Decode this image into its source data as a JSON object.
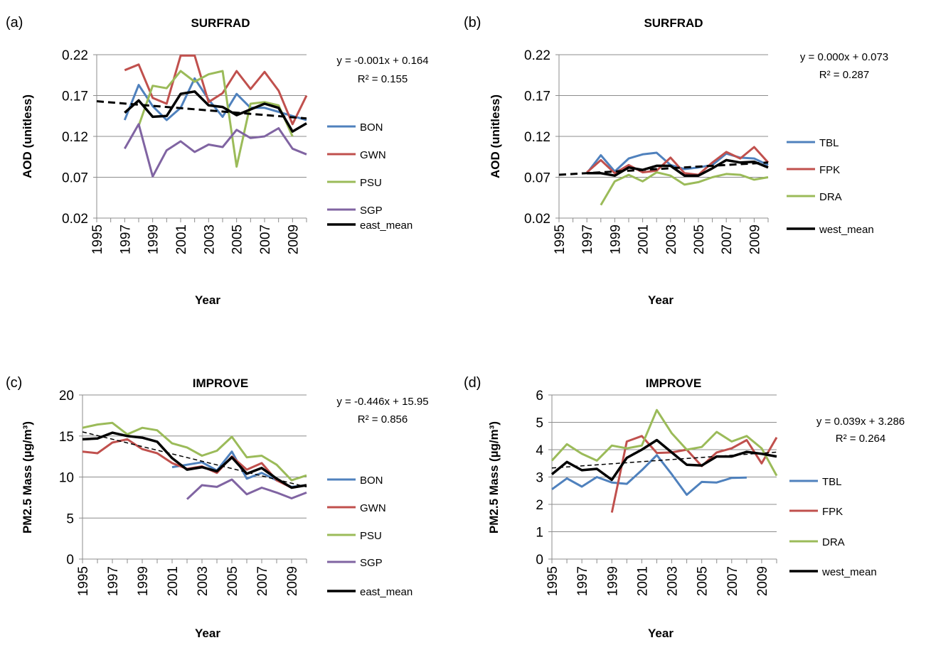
{
  "chart_data": [
    {
      "type": "line",
      "panel_label": "(a)",
      "title": "SURFRAD",
      "xlabel": "Year",
      "ylabel": "AOD (unitless)",
      "ylim": [
        0.02,
        0.22
      ],
      "yticks": [
        0.02,
        0.07,
        0.12,
        0.17,
        0.22
      ],
      "ytick_labels": [
        "0.02",
        "0.07",
        "0.12",
        "0.17",
        "0.22"
      ],
      "xlim": [
        1995,
        2010
      ],
      "xticks": [
        1995,
        1997,
        1999,
        2001,
        2003,
        2005,
        2007,
        2009
      ],
      "xtick_labels": [
        "1995",
        "1997",
        "1999",
        "2001",
        "2003",
        "2005",
        "2007",
        "2009"
      ],
      "grid": true,
      "legend_position": "right",
      "equation": "y = -0.001x + 0.164",
      "r_squared": "R² = 0.155",
      "trend": {
        "x": [
          1995,
          2010
        ],
        "y": [
          0.163,
          0.142
        ]
      },
      "series": [
        {
          "name": "BON",
          "color": "#4F81BD",
          "x": [
            1997,
            1998,
            1999,
            2000,
            2001,
            2002,
            2003,
            2004,
            2005,
            2006,
            2007,
            2008,
            2009,
            2010
          ],
          "y": [
            0.14,
            0.183,
            0.157,
            0.14,
            0.155,
            0.191,
            0.165,
            0.144,
            0.172,
            0.155,
            0.155,
            0.15,
            0.145,
            0.14
          ]
        },
        {
          "name": "GWN",
          "color": "#C0504D",
          "x": [
            1997,
            1998,
            1999,
            2000,
            2001,
            2002,
            2003,
            2004,
            2005,
            2006,
            2007,
            2008,
            2009,
            2010
          ],
          "y": [
            0.201,
            0.208,
            0.167,
            0.16,
            0.219,
            0.219,
            0.162,
            0.173,
            0.2,
            0.178,
            0.199,
            0.176,
            0.135,
            0.17
          ]
        },
        {
          "name": "PSU",
          "color": "#9BBB59",
          "x": [
            1998,
            1999,
            2000,
            2001,
            2002,
            2003,
            2004,
            2005,
            2006,
            2007,
            2008,
            2009
          ],
          "y": [
            0.133,
            0.182,
            0.179,
            0.2,
            0.187,
            0.196,
            0.2,
            0.083,
            0.16,
            0.162,
            0.158,
            0.12
          ]
        },
        {
          "name": "SGP",
          "color": "#8064A2",
          "x": [
            1997,
            1998,
            1999,
            2000,
            2001,
            2002,
            2003,
            2004,
            2005,
            2006,
            2007,
            2008,
            2009,
            2010
          ],
          "y": [
            0.105,
            0.135,
            0.071,
            0.103,
            0.114,
            0.101,
            0.11,
            0.107,
            0.128,
            0.118,
            0.12,
            0.13,
            0.105,
            0.098
          ]
        },
        {
          "name": "east_mean",
          "color": "#000000",
          "x": [
            1997,
            1998,
            1999,
            2000,
            2001,
            2002,
            2003,
            2004,
            2005,
            2006,
            2007,
            2008,
            2009,
            2010
          ],
          "y": [
            0.149,
            0.164,
            0.144,
            0.145,
            0.172,
            0.175,
            0.158,
            0.156,
            0.146,
            0.153,
            0.16,
            0.155,
            0.126,
            0.136
          ]
        }
      ]
    },
    {
      "type": "line",
      "panel_label": "(b)",
      "title": "SURFRAD",
      "xlabel": "Year",
      "ylabel": "AOD (unitless)",
      "ylim": [
        0.02,
        0.22
      ],
      "yticks": [
        0.02,
        0.07,
        0.12,
        0.17,
        0.22
      ],
      "ytick_labels": [
        "0.02",
        "0.07",
        "0.12",
        "0.17",
        "0.22"
      ],
      "xlim": [
        1995,
        2010
      ],
      "xticks": [
        1995,
        1997,
        1999,
        2001,
        2003,
        2005,
        2007,
        2009
      ],
      "xtick_labels": [
        "1995",
        "1997",
        "1999",
        "2001",
        "2003",
        "2005",
        "2007",
        "2009"
      ],
      "grid": true,
      "legend_position": "right",
      "equation": "y = 0.000x + 0.073",
      "r_squared": "R² = 0.287",
      "trend": {
        "x": [
          1995,
          2010
        ],
        "y": [
          0.073,
          0.088
        ]
      },
      "series": [
        {
          "name": "TBL",
          "color": "#4F81BD",
          "x": [
            1997,
            1998,
            1999,
            2000,
            2001,
            2002,
            2003,
            2004,
            2005,
            2006,
            2007,
            2008,
            2009,
            2010
          ],
          "y": [
            0.075,
            0.097,
            0.077,
            0.093,
            0.098,
            0.1,
            0.085,
            0.08,
            0.082,
            0.085,
            0.099,
            0.094,
            0.093,
            0.085
          ]
        },
        {
          "name": "FPK",
          "color": "#C0504D",
          "x": [
            1997,
            1998,
            1999,
            2000,
            2001,
            2002,
            2003,
            2004,
            2005,
            2006,
            2007,
            2008,
            2009,
            2010
          ],
          "y": [
            0.076,
            0.091,
            0.075,
            0.085,
            0.076,
            0.078,
            0.094,
            0.075,
            0.073,
            0.088,
            0.101,
            0.093,
            0.107,
            0.088
          ]
        },
        {
          "name": "DRA",
          "color": "#9BBB59",
          "x": [
            1998,
            1999,
            2000,
            2001,
            2002,
            2003,
            2004,
            2005,
            2006,
            2007,
            2008,
            2009,
            2010
          ],
          "y": [
            0.036,
            0.065,
            0.073,
            0.065,
            0.076,
            0.072,
            0.061,
            0.064,
            0.07,
            0.074,
            0.073,
            0.067,
            0.07
          ]
        },
        {
          "name": "west_mean",
          "color": "#000000",
          "x": [
            1997,
            1998,
            1999,
            2000,
            2001,
            2002,
            2003,
            2004,
            2005,
            2006,
            2007,
            2008,
            2009,
            2010
          ],
          "y": [
            0.075,
            0.075,
            0.072,
            0.082,
            0.079,
            0.084,
            0.084,
            0.072,
            0.072,
            0.081,
            0.091,
            0.088,
            0.089,
            0.082
          ]
        }
      ]
    },
    {
      "type": "line",
      "panel_label": "(c)",
      "title": "IMPROVE",
      "xlabel": "Year",
      "ylabel": "PM2.5 Mass (µg/m³)",
      "ylim": [
        0,
        20
      ],
      "yticks": [
        0,
        5,
        10,
        15,
        20
      ],
      "ytick_labels": [
        "0",
        "5",
        "10",
        "15",
        "20"
      ],
      "xlim": [
        1995,
        2010
      ],
      "xticks": [
        1995,
        1997,
        1999,
        2001,
        2003,
        2005,
        2007,
        2009
      ],
      "xtick_labels": [
        "1995",
        "1997",
        "1999",
        "2001",
        "2003",
        "2005",
        "2007",
        "2009"
      ],
      "grid": true,
      "legend_position": "right",
      "equation": "y = -0.446x + 15.95",
      "r_squared": "R² = 0.856",
      "trend": {
        "x": [
          1995,
          2010
        ],
        "y": [
          15.5,
          8.8
        ]
      },
      "series": [
        {
          "name": "BON",
          "color": "#4F81BD",
          "x": [
            2001,
            2002,
            2003,
            2004,
            2005,
            2006,
            2007,
            2008,
            2009,
            2010
          ],
          "y": [
            11.2,
            11.5,
            11.8,
            10.8,
            13.1,
            9.8,
            10.5,
            9.6,
            8.8,
            9.0
          ]
        },
        {
          "name": "GWN",
          "color": "#C0504D",
          "x": [
            1995,
            1996,
            1997,
            1998,
            1999,
            2000,
            2001,
            2002,
            2003,
            2004,
            2005,
            2006,
            2007,
            2008,
            2009,
            2010
          ],
          "y": [
            13.1,
            12.9,
            14.2,
            14.6,
            13.4,
            12.9,
            11.7,
            11.0,
            11.3,
            10.5,
            12.5,
            10.9,
            11.7,
            9.6,
            8.7,
            9.0
          ]
        },
        {
          "name": "PSU",
          "color": "#9BBB59",
          "x": [
            1995,
            1996,
            1997,
            1998,
            1999,
            2000,
            2001,
            2002,
            2003,
            2004,
            2005,
            2006,
            2007,
            2008,
            2009,
            2010
          ],
          "y": [
            16.0,
            16.4,
            16.6,
            15.2,
            16.0,
            15.7,
            14.1,
            13.6,
            12.6,
            13.2,
            14.9,
            12.4,
            12.6,
            11.5,
            9.6,
            10.2
          ]
        },
        {
          "name": "SGP",
          "color": "#8064A2",
          "x": [
            2002,
            2003,
            2004,
            2005,
            2006,
            2007,
            2008,
            2009,
            2010
          ],
          "y": [
            7.3,
            9.0,
            8.8,
            9.7,
            7.9,
            8.7,
            8.1,
            7.4,
            8.1
          ]
        },
        {
          "name": "east_mean",
          "color": "#000000",
          "x": [
            1995,
            1996,
            1997,
            1998,
            1999,
            2000,
            2001,
            2002,
            2003,
            2004,
            2005,
            2006,
            2007,
            2008,
            2009,
            2010
          ],
          "y": [
            14.6,
            14.7,
            15.4,
            15.0,
            14.8,
            14.3,
            12.3,
            10.9,
            11.2,
            10.7,
            12.4,
            10.4,
            11.1,
            9.8,
            8.7,
            9.0
          ]
        }
      ]
    },
    {
      "type": "line",
      "panel_label": "(d)",
      "title": "IMPROVE",
      "xlabel": "Year",
      "ylabel": "PM2.5 Mass (µg/m³)",
      "ylim": [
        0,
        6
      ],
      "yticks": [
        0,
        1,
        2,
        3,
        4,
        5,
        6
      ],
      "ytick_labels": [
        "0",
        "1",
        "2",
        "3",
        "4",
        "5",
        "6"
      ],
      "xlim": [
        1995,
        2010
      ],
      "xticks": [
        1995,
        1997,
        1999,
        2001,
        2003,
        2005,
        2007,
        2009
      ],
      "xtick_labels": [
        "1995",
        "1997",
        "1999",
        "2001",
        "2003",
        "2005",
        "2007",
        "2009"
      ],
      "grid": true,
      "legend_position": "right",
      "equation": "y = 0.039x + 3.286",
      "r_squared": "R² = 0.264",
      "trend": {
        "x": [
          1995,
          2010
        ],
        "y": [
          3.33,
          3.91
        ]
      },
      "series": [
        {
          "name": "TBL",
          "color": "#4F81BD",
          "x": [
            1995,
            1996,
            1997,
            1998,
            1999,
            2000,
            2001,
            2002,
            2003,
            2004,
            2005,
            2006,
            2007,
            2008
          ],
          "y": [
            2.55,
            2.95,
            2.65,
            3.0,
            2.8,
            2.75,
            3.25,
            3.8,
            3.1,
            2.35,
            2.82,
            2.8,
            2.97,
            2.98
          ]
        },
        {
          "name": "FPK",
          "color": "#C0504D",
          "x": [
            1999,
            2000,
            2001,
            2002,
            2003,
            2004,
            2005,
            2006,
            2007,
            2008,
            2009,
            2010
          ],
          "y": [
            1.7,
            4.3,
            4.5,
            3.88,
            3.9,
            4.0,
            3.4,
            3.9,
            4.05,
            4.35,
            3.5,
            4.45
          ]
        },
        {
          "name": "DRA",
          "color": "#9BBB59",
          "x": [
            1995,
            1996,
            1997,
            1998,
            1999,
            2000,
            2001,
            2002,
            2003,
            2004,
            2005,
            2006,
            2007,
            2008,
            2009,
            2010
          ],
          "y": [
            3.6,
            4.2,
            3.85,
            3.6,
            4.15,
            4.05,
            4.15,
            5.45,
            4.6,
            4.0,
            4.1,
            4.65,
            4.3,
            4.5,
            4.05,
            3.05
          ]
        },
        {
          "name": "west_mean",
          "color": "#000000",
          "x": [
            1995,
            1996,
            1997,
            1998,
            1999,
            2000,
            2001,
            2002,
            2003,
            2004,
            2005,
            2006,
            2007,
            2008,
            2009,
            2010
          ],
          "y": [
            3.1,
            3.55,
            3.25,
            3.3,
            2.9,
            3.7,
            4.0,
            4.35,
            3.9,
            3.45,
            3.42,
            3.75,
            3.75,
            3.92,
            3.85,
            3.75
          ]
        }
      ]
    }
  ]
}
